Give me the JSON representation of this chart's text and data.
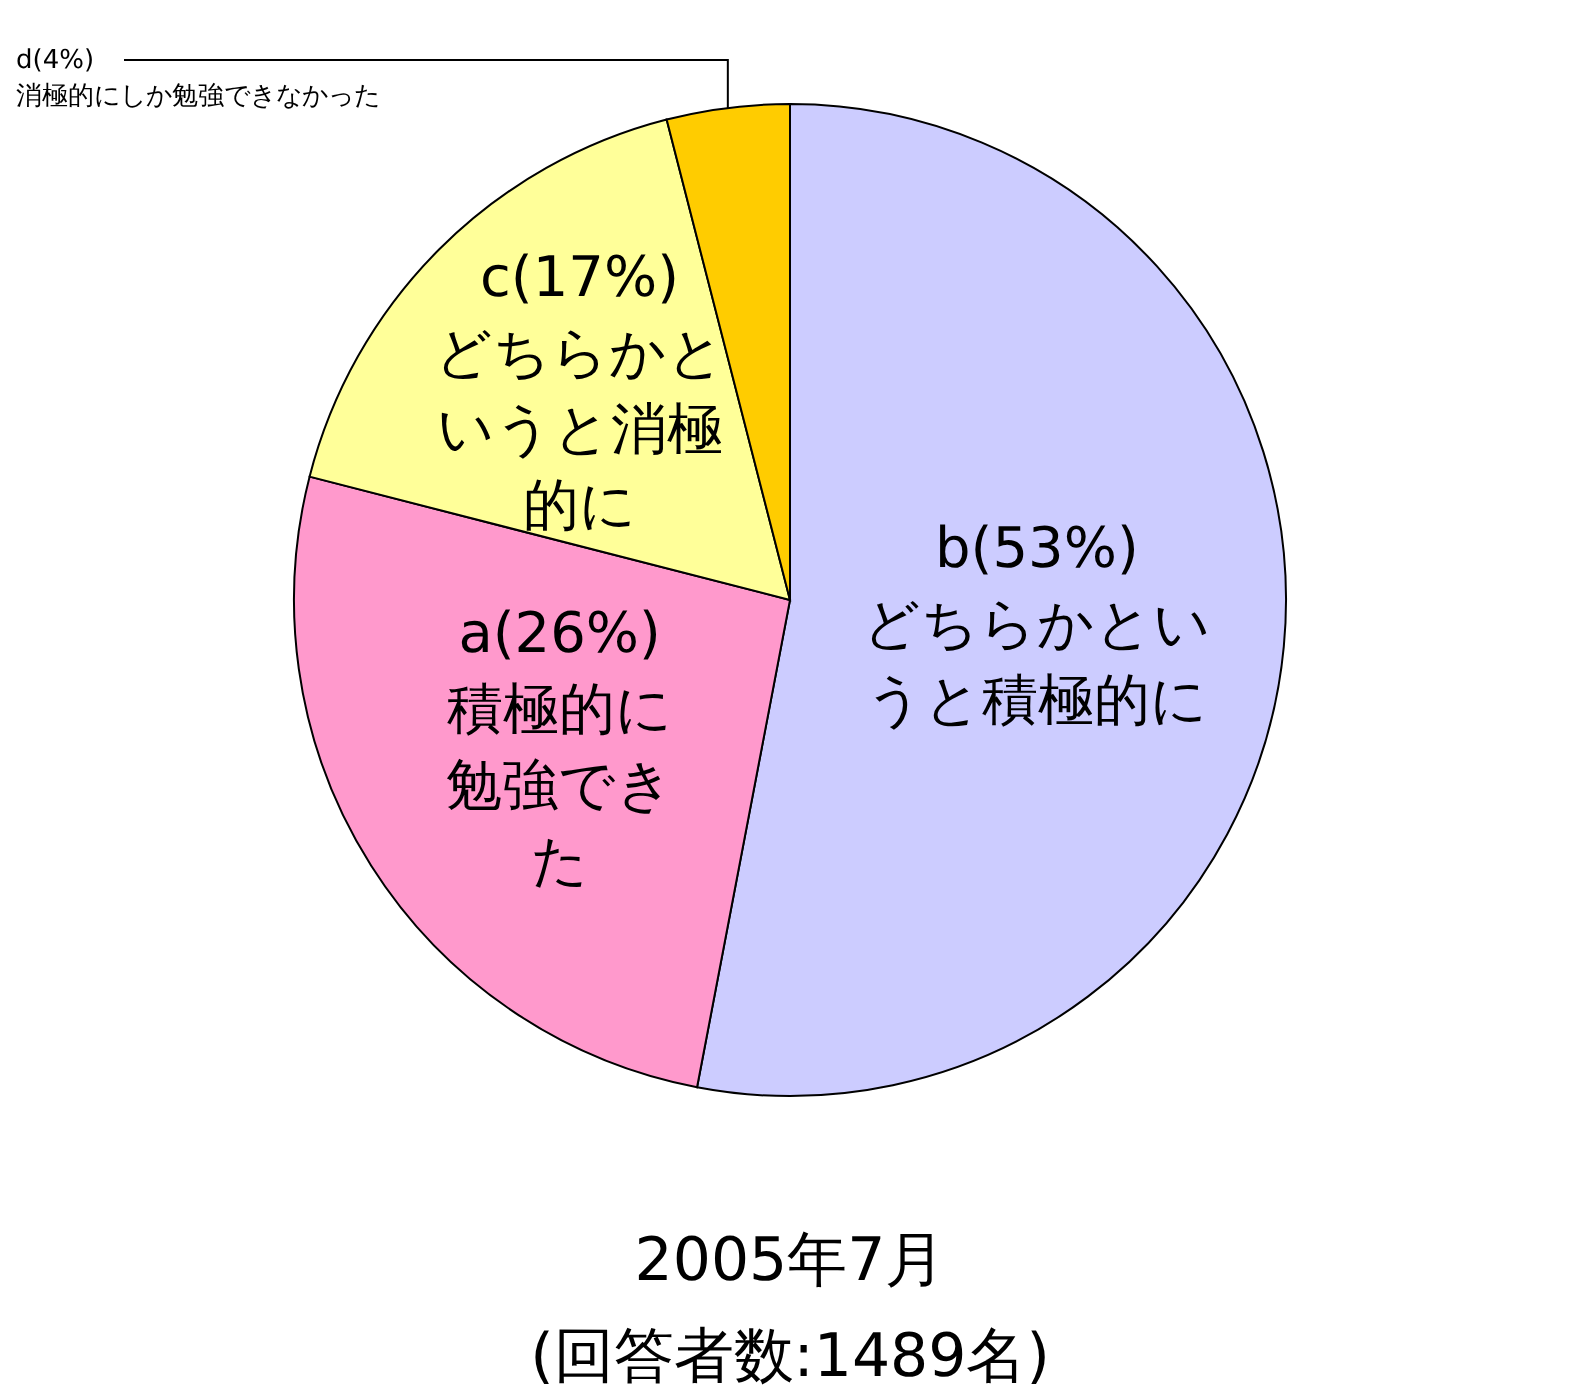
{
  "chart_data": {
    "type": "pie",
    "categories": [
      "b(53%)\nどちらかというと積極的に",
      "a(26%)\n積極的に勉強できた",
      "c(17%)\nどちらかというと消極的に",
      "d(4%)\n消極的にしか勉強できなかった"
    ],
    "values": [
      53,
      26,
      17,
      4
    ],
    "colors": [
      "#ccccff",
      "#ff99cc",
      "#ffff99",
      "#ffcc00"
    ],
    "title": "2005年7月",
    "subtitle": "(回答者数:1489名)"
  }
}
